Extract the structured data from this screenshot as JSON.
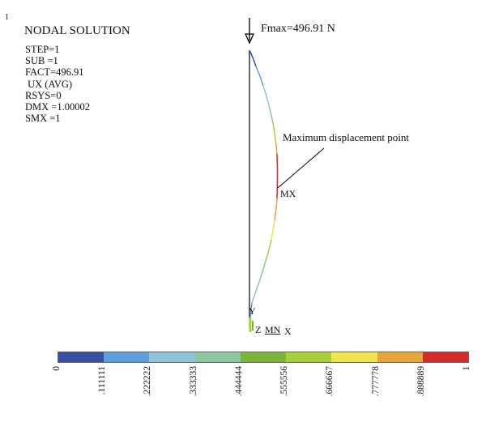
{
  "window_number": "1",
  "title": "NODAL SOLUTION",
  "params": [
    "STEP=1",
    "SUB =1",
    "FACT=496.91",
    " UX (AVG)",
    "RSYS=0",
    "DMX =1.00002",
    "SMX =1"
  ],
  "annotations": {
    "fmax": "Fmax=496.91 N",
    "max_point": "Maximum displacement point",
    "mx": "MX",
    "mn": "MN",
    "axis_y": "Y",
    "axis_z": "Z",
    "axis_x": "X"
  },
  "legend": {
    "colors": [
      "#3a4fa3",
      "#5b9fdc",
      "#8fc3d6",
      "#8cc7a0",
      "#7ab53a",
      "#a9cf3b",
      "#f0e54a",
      "#e6a63a",
      "#d42a2a"
    ],
    "ticks": [
      "0",
      ".111111",
      ".222222",
      ".333333",
      ".444444",
      ".555556",
      ".666667",
      ".777778",
      ".888889",
      "1"
    ]
  }
}
